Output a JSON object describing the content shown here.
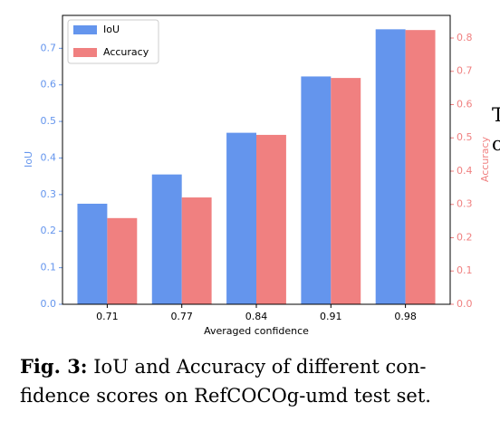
{
  "chart_data": {
    "type": "bar",
    "categories": [
      "0.71",
      "0.77",
      "0.84",
      "0.91",
      "0.98"
    ],
    "series": [
      {
        "name": "IoU",
        "color": "#6495ed",
        "values": [
          0.275,
          0.355,
          0.469,
          0.623,
          0.752
        ]
      },
      {
        "name": "Accuracy",
        "color": "#f08080",
        "values": [
          0.259,
          0.321,
          0.509,
          0.68,
          0.824
        ],
        "axis": "y2"
      }
    ],
    "ylim": [
      0,
      0.79
    ],
    "yticks": [
      {
        "value": 0,
        "label": "0.0"
      },
      0.1,
      0.2,
      0.3,
      0.4,
      0.5,
      0.6,
      0.7
    ],
    "y2lim": [
      0,
      0.868
    ],
    "y2ticks": [
      {
        "value": 0,
        "label": "0.0"
      },
      0.1,
      0.2,
      0.3,
      0.4,
      0.5,
      0.6,
      0.7,
      0.8
    ],
    "xlabel": "Averaged confidence",
    "ylabel": "IoU",
    "y2label": "Accuracy",
    "legend": "upper left"
  },
  "caption": {
    "label": "Fig. 3:",
    "lines": [
      "IoU and Accuracy of different con-",
      "fidence scores on RefCOCOg-umd test set."
    ]
  },
  "side_text": [
    "T",
    "c"
  ]
}
